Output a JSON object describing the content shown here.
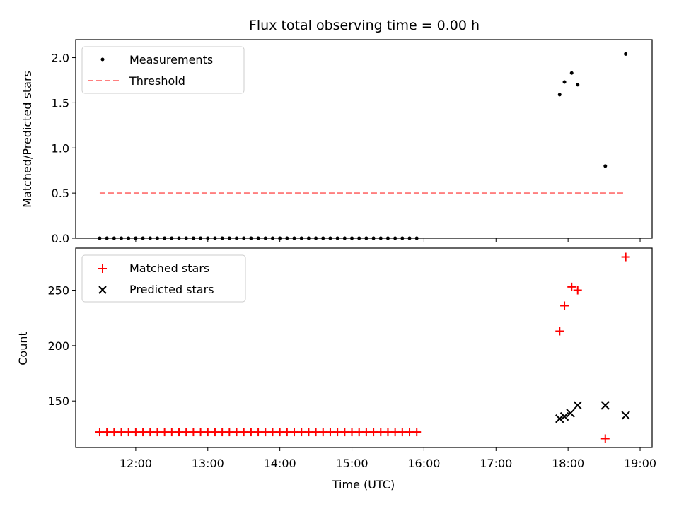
{
  "chart_data": [
    {
      "type": "scatter",
      "title": "Flux total observing time = 0.00 h",
      "ylabel": "Matched/Predicted stars",
      "xlabel": "",
      "xlim": [
        "11:10",
        "19:10"
      ],
      "ylim": [
        0,
        2.2
      ],
      "yticks": [
        "0.0",
        "0.5",
        "1.0",
        "1.5",
        "2.0"
      ],
      "grid": false,
      "legend_position": "top-left",
      "series": [
        {
          "name": "Measurements",
          "marker": "dot",
          "color": "#000000",
          "x_early": {
            "start": "11:30",
            "end": "15:57",
            "step_minutes": 6
          },
          "y_early": 0.0,
          "x": [
            "17:53",
            "17:57",
            "18:03",
            "18:08",
            "18:31",
            "18:48"
          ],
          "y": [
            1.59,
            1.73,
            1.83,
            1.7,
            0.8,
            2.04
          ]
        },
        {
          "name": "Threshold",
          "style": "dashed",
          "color": "#ff7f7f",
          "x": [
            "11:30",
            "18:48"
          ],
          "y": [
            0.5,
            0.5
          ]
        }
      ]
    },
    {
      "type": "scatter",
      "title": "",
      "ylabel": "Count",
      "xlabel": "Time (UTC)",
      "xlim": [
        "11:10",
        "19:10"
      ],
      "ylim": [
        108,
        288
      ],
      "yticks": [
        "150",
        "200",
        "250"
      ],
      "xticks": [
        "12:00",
        "13:00",
        "14:00",
        "15:00",
        "16:00",
        "17:00",
        "18:00",
        "19:00"
      ],
      "grid": false,
      "legend_position": "top-left",
      "series": [
        {
          "name": "Matched stars",
          "marker": "plus",
          "color": "#ff0000",
          "x_early": {
            "start": "11:30",
            "end": "15:57",
            "step_minutes": 6
          },
          "y_early": 122,
          "x": [
            "17:53",
            "17:57",
            "18:03",
            "18:08",
            "18:31",
            "18:48"
          ],
          "y": [
            213,
            236,
            253,
            250,
            116,
            280
          ]
        },
        {
          "name": "Predicted stars",
          "marker": "cross",
          "color": "#000000",
          "x": [
            "17:53",
            "17:57",
            "18:02",
            "18:08",
            "18:31",
            "18:48"
          ],
          "y": [
            134,
            136,
            139,
            146,
            146,
            137
          ]
        }
      ]
    }
  ]
}
